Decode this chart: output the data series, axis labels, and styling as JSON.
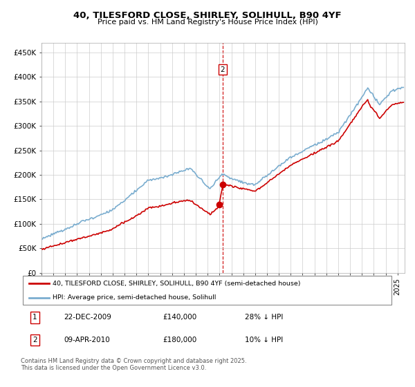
{
  "title1": "40, TILESFORD CLOSE, SHIRLEY, SOLIHULL, B90 4YF",
  "title2": "Price paid vs. HM Land Registry's House Price Index (HPI)",
  "legend_property": "40, TILESFORD CLOSE, SHIRLEY, SOLIHULL, B90 4YF (semi-detached house)",
  "legend_hpi": "HPI: Average price, semi-detached house, Solihull",
  "property_color": "#cc0000",
  "hpi_color": "#7aadcf",
  "footnote": "Contains HM Land Registry data © Crown copyright and database right 2025.\nThis data is licensed under the Open Government Licence v3.0.",
  "transaction1_date": "22-DEC-2009",
  "transaction1_price": "£140,000",
  "transaction1_hpi": "28% ↓ HPI",
  "transaction2_date": "09-APR-2010",
  "transaction2_price": "£180,000",
  "transaction2_hpi": "10% ↓ HPI",
  "vline_x": 2010.27,
  "vline_color": "#cc0000",
  "marker2_x": 2010.27,
  "marker2_y": 180000,
  "marker1_x": 2009.97,
  "marker1_y": 140000,
  "ylim": [
    0,
    470000
  ],
  "xlim_start": 1995.0,
  "xlim_end": 2025.6,
  "yticks": [
    0,
    50000,
    100000,
    150000,
    200000,
    250000,
    300000,
    350000,
    400000,
    450000
  ],
  "ytick_labels": [
    "£0",
    "£50K",
    "£100K",
    "£150K",
    "£200K",
    "£250K",
    "£300K",
    "£350K",
    "£400K",
    "£450K"
  ]
}
